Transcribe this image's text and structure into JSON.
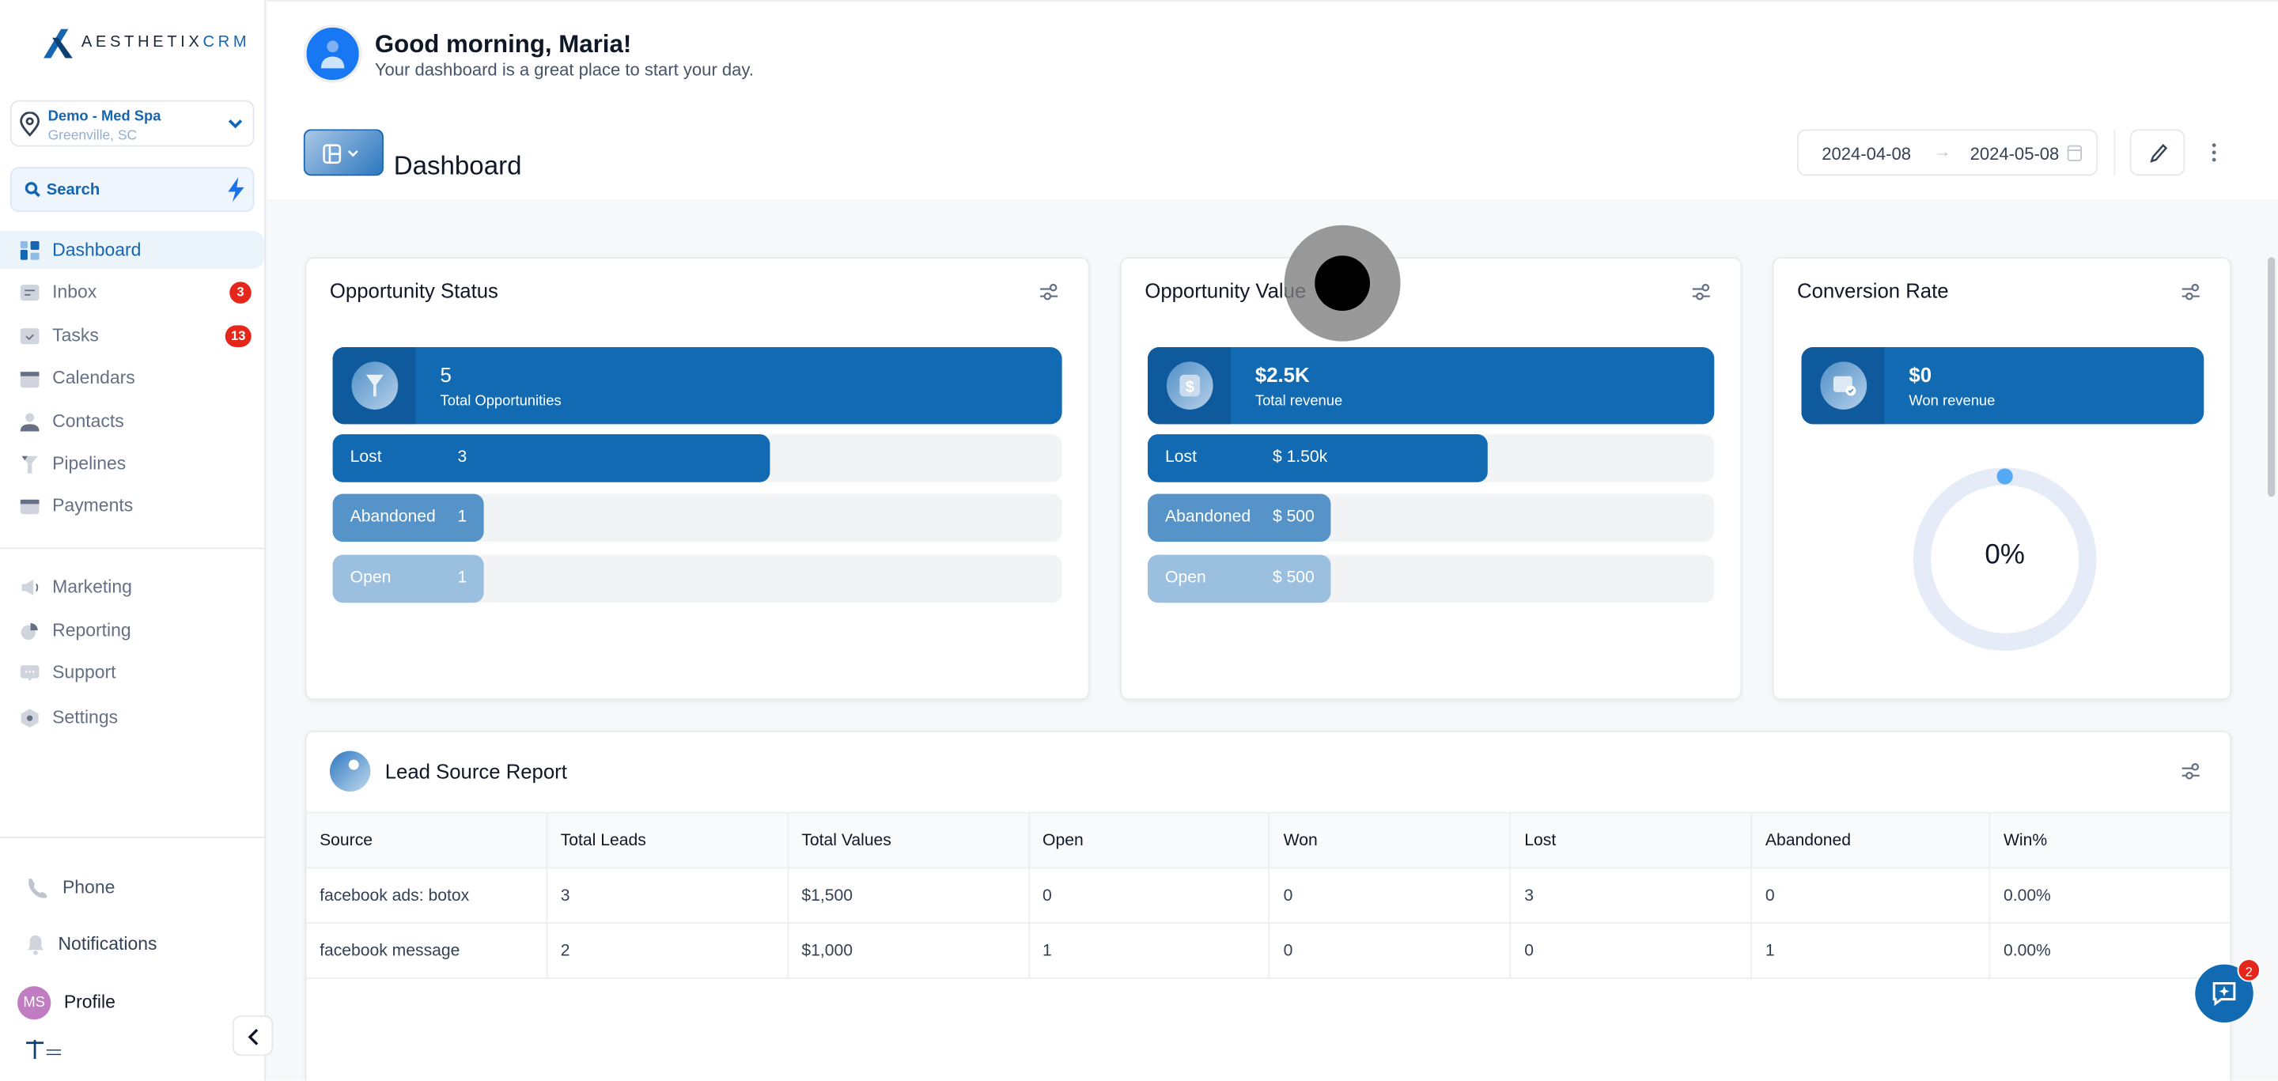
{
  "brand": {
    "name_a": "AESTHETIX",
    "name_b": "CRM"
  },
  "location": {
    "name": "Demo - Med Spa",
    "city": "Greenville, SC"
  },
  "search": {
    "label": "Search"
  },
  "nav_main": [
    {
      "label": "Dashboard",
      "icon": "dashboard-icon",
      "active": true
    },
    {
      "label": "Inbox",
      "icon": "inbox-icon",
      "badge": "3"
    },
    {
      "label": "Tasks",
      "icon": "tasks-icon",
      "badge": "13"
    },
    {
      "label": "Calendars",
      "icon": "calendar-icon"
    },
    {
      "label": "Contacts",
      "icon": "contacts-icon"
    },
    {
      "label": "Pipelines",
      "icon": "funnel-icon"
    },
    {
      "label": "Payments",
      "icon": "payments-icon"
    }
  ],
  "nav_secondary": [
    {
      "label": "Marketing",
      "icon": "megaphone-icon"
    },
    {
      "label": "Reporting",
      "icon": "pie-chart-icon"
    },
    {
      "label": "Support",
      "icon": "chat-icon"
    },
    {
      "label": "Settings",
      "icon": "gear-icon"
    }
  ],
  "nav_bottom": {
    "phone": "Phone",
    "notifications": "Notifications",
    "profile": "Profile",
    "initials": "MS"
  },
  "header": {
    "greeting": "Good morning, Maria!",
    "subtitle": "Your dashboard is a great place to start your day.",
    "page_title": "Dashboard",
    "date_from": "2024-04-08",
    "date_to": "2024-05-08"
  },
  "opportunity_status": {
    "title": "Opportunity Status",
    "total_value": "5",
    "total_label": "Total Opportunities",
    "rows": [
      {
        "label": "Lost",
        "value": "3",
        "fraction": 0.6,
        "color": "#126bb2"
      },
      {
        "label": "Abandoned",
        "value": "1",
        "fraction": 0.2,
        "color": "#5593c8"
      },
      {
        "label": "Open",
        "value": "1",
        "fraction": 0.2,
        "color": "#9bbfdf"
      }
    ]
  },
  "opportunity_value": {
    "title": "Opportunity Value",
    "total_value": "$2.5K",
    "total_label": "Total revenue",
    "rows": [
      {
        "label": "Lost",
        "value": "$ 1.50k",
        "fraction": 0.6,
        "color": "#126bb2"
      },
      {
        "label": "Abandoned",
        "value": "$ 500",
        "fraction": 0.2,
        "color": "#5593c8"
      },
      {
        "label": "Open",
        "value": "$ 500",
        "fraction": 0.2,
        "color": "#9bbfdf"
      }
    ]
  },
  "conversion_rate": {
    "title": "Conversion Rate",
    "won_value": "$0",
    "won_label": "Won revenue",
    "percent_text": "0%",
    "percent": 0
  },
  "lead_source": {
    "title": "Lead Source Report",
    "columns": [
      "Source",
      "Total Leads",
      "Total Values",
      "Open",
      "Won",
      "Lost",
      "Abandoned",
      "Win%"
    ],
    "rows": [
      [
        "facebook ads: botox",
        "3",
        "$1,500",
        "0",
        "0",
        "3",
        "0",
        "0.00%"
      ],
      [
        "facebook message",
        "2",
        "$1,000",
        "1",
        "0",
        "0",
        "1",
        "0.00%"
      ]
    ]
  },
  "chat": {
    "badge": "2"
  }
}
